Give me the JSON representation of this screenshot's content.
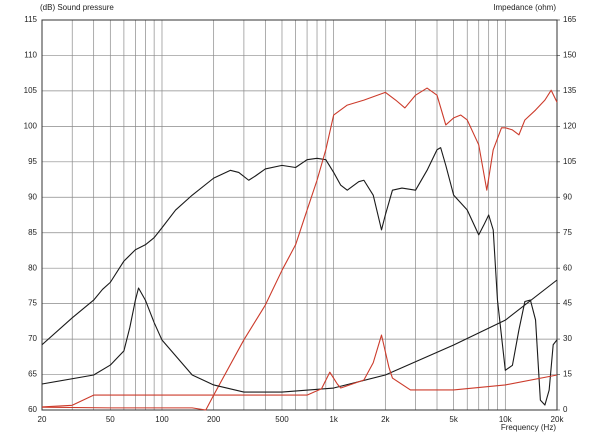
{
  "chart_data": {
    "type": "line",
    "title": "(dB)  Sound pressure",
    "y2_label": "Impedance  (ohm)",
    "x_label": "Frequency (Hz)",
    "log_x": true,
    "grid": true,
    "xlim": [
      20,
      20000
    ],
    "xticks": [
      20,
      50,
      100,
      200,
      500,
      {
        "value": 1000,
        "label": "1k"
      },
      {
        "value": 2000,
        "label": "2k"
      },
      {
        "value": 5000,
        "label": "5k"
      },
      {
        "value": 10000,
        "label": "10k"
      },
      {
        "value": 20000,
        "label": "20k"
      }
    ],
    "xminor": [
      30,
      40,
      60,
      70,
      80,
      90,
      300,
      400,
      600,
      700,
      800,
      900,
      3000,
      4000,
      6000,
      7000,
      8000,
      9000
    ],
    "ylim": [
      60,
      115
    ],
    "yticks": [
      60,
      65,
      70,
      75,
      80,
      85,
      90,
      95,
      100,
      105,
      110,
      115
    ],
    "y2lim": [
      0,
      165
    ],
    "y2ticks": [
      0,
      15,
      30,
      45,
      60,
      75,
      90,
      105,
      120,
      135,
      150,
      165
    ],
    "series": [
      {
        "color": "#1a1a1a",
        "x": [
          20,
          30,
          40,
          45,
          50,
          60,
          70,
          80,
          90,
          100,
          120,
          150,
          200,
          250,
          280,
          320,
          350,
          400,
          500,
          600,
          700,
          800,
          900,
          1000,
          1100,
          1200,
          1400,
          1500,
          1700,
          1900,
          2000,
          2200,
          2500,
          3000,
          3500,
          4000,
          4200,
          4500,
          5000,
          6000,
          7000,
          7500,
          8000,
          8500,
          9000,
          10000,
          11000,
          12000,
          13000,
          14000,
          15000,
          16000,
          17000,
          18000,
          19000,
          20000
        ],
        "values": [
          69.2,
          73,
          75.5,
          77,
          78,
          81,
          82.6,
          83.3,
          84.3,
          85.7,
          88.2,
          90.3,
          92.7,
          93.8,
          93.5,
          92.4,
          93,
          94,
          94.5,
          94.2,
          95.3,
          95.5,
          95.3,
          93.5,
          91.7,
          91,
          92.2,
          92.4,
          90.3,
          85.4,
          87.5,
          91,
          91.3,
          91,
          93.8,
          96.7,
          97,
          94.5,
          90.3,
          88.2,
          84.7,
          86.1,
          87.5,
          85.4,
          75.5,
          65.6,
          66.3,
          71.3,
          75.3,
          75.5,
          72.7,
          61.4,
          60.7,
          62.8,
          69.2,
          69.9
        ]
      },
      {
        "color": "#cc3b2b",
        "x": [
          20,
          50,
          100,
          150,
          180,
          200,
          300,
          400,
          500,
          600,
          700,
          800,
          900,
          1000,
          1200,
          1500,
          2000,
          2300,
          2600,
          3000,
          3500,
          4000,
          4500,
          5000,
          5500,
          6000,
          7000,
          7800,
          8500,
          9500,
          10000,
          11000,
          12000,
          13000,
          15000,
          17000,
          18500,
          20000
        ],
        "values": [
          60.4,
          60.3,
          60.3,
          60.3,
          60,
          62.1,
          69.9,
          74.8,
          79.7,
          83.3,
          88.2,
          92.4,
          96.7,
          101.6,
          103,
          103.7,
          104.8,
          103.7,
          102.6,
          104.4,
          105.4,
          104.4,
          100.2,
          101.2,
          101.6,
          100.9,
          97.4,
          91,
          96.7,
          99.8,
          99.8,
          99.5,
          98.8,
          100.9,
          102.3,
          103.7,
          105.1,
          103.4
        ]
      },
      {
        "color": "#1a1a1a",
        "axis": "y2",
        "x": [
          20,
          40,
          50,
          60,
          65,
          70,
          73,
          80,
          90,
          100,
          150,
          200,
          300,
          500,
          1000,
          2000,
          5000,
          10000,
          20000
        ],
        "values": [
          11,
          14.8,
          19,
          25,
          35,
          46.5,
          51.6,
          46.5,
          37,
          29.6,
          14.8,
          10.6,
          7.6,
          7.6,
          9.3,
          14.8,
          27.5,
          38,
          55
        ]
      },
      {
        "color": "#cc3b2b",
        "axis": "y2",
        "x": [
          20,
          30,
          40,
          100,
          700,
          850,
          950,
          1050,
          1100,
          1500,
          1700,
          1900,
          2100,
          2200,
          2800,
          5000,
          10000,
          20000
        ],
        "values": [
          1.3,
          2,
          6.3,
          6.3,
          6.3,
          9,
          16,
          11,
          9.3,
          12.7,
          20,
          31.7,
          18,
          13.5,
          8.5,
          8.5,
          10.6,
          14.8
        ]
      }
    ]
  }
}
